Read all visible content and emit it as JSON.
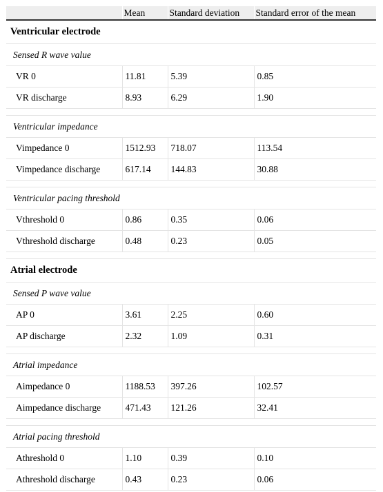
{
  "table": {
    "headers": [
      "",
      "Mean",
      "Standard deviation",
      "Standard error of the mean"
    ],
    "sections": [
      {
        "title": "Ventricular electrode",
        "groups": [
          {
            "subtitle": "Sensed R wave value",
            "rows": [
              {
                "label": "VR 0",
                "mean": "11.81",
                "sd": "5.39",
                "sem": "0.85"
              },
              {
                "label": "VR discharge",
                "mean": "8.93",
                "sd": "6.29",
                "sem": "1.90"
              }
            ]
          },
          {
            "subtitle": "Ventricular impedance",
            "rows": [
              {
                "label": "Vimpedance 0",
                "mean": "1512.93",
                "sd": "718.07",
                "sem": "113.54"
              },
              {
                "label": "Vimpedance discharge",
                "mean": "617.14",
                "sd": "144.83",
                "sem": "30.88"
              }
            ]
          },
          {
            "subtitle": "Ventricular pacing threshold",
            "rows": [
              {
                "label": "Vthreshold 0",
                "mean": "0.86",
                "sd": "0.35",
                "sem": "0.06"
              },
              {
                "label": "Vthreshold discharge",
                "mean": "0.48",
                "sd": "0.23",
                "sem": "0.05"
              }
            ]
          }
        ]
      },
      {
        "title": "Atrial electrode",
        "groups": [
          {
            "subtitle": "Sensed P wave value",
            "rows": [
              {
                "label": "AP 0",
                "mean": "3.61",
                "sd": "2.25",
                "sem": "0.60"
              },
              {
                "label": "AP discharge",
                "mean": "2.32",
                "sd": "1.09",
                "sem": "0.31"
              }
            ]
          },
          {
            "subtitle": "Atrial impedance",
            "rows": [
              {
                "label": "Aimpedance 0",
                "mean": "1188.53",
                "sd": "397.26",
                "sem": "102.57"
              },
              {
                "label": "Aimpedance discharge",
                "mean": "471.43",
                "sd": "121.26",
                "sem": "32.41"
              }
            ]
          },
          {
            "subtitle": "Atrial pacing threshold",
            "rows": [
              {
                "label": "Athreshold 0",
                "mean": "1.10",
                "sd": "0.39",
                "sem": "0.10"
              },
              {
                "label": "Athreshold discharge",
                "mean": "0.43",
                "sd": "0.23",
                "sem": "0.06"
              }
            ]
          }
        ]
      }
    ]
  }
}
